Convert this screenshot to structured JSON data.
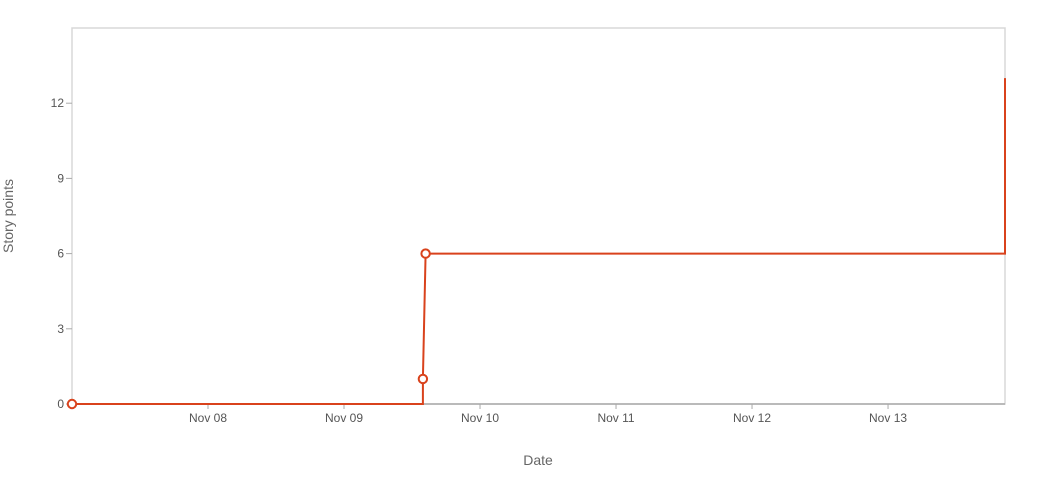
{
  "chart_data": {
    "type": "line",
    "title": "",
    "xlabel": "Date",
    "ylabel": "Story points",
    "x_tick_labels": [
      "Nov 08",
      "Nov 09",
      "Nov 10",
      "Nov 11",
      "Nov 12",
      "Nov 13"
    ],
    "y_ticks": [
      0,
      3,
      6,
      9,
      12
    ],
    "ylim": [
      0,
      15
    ],
    "xlim_days": [
      0,
      6.86
    ],
    "grid": false,
    "series": [
      {
        "name": "Story points",
        "color": "#d9421c",
        "step": true,
        "points": [
          {
            "x": 0.0,
            "y": 0,
            "marker": true
          },
          {
            "x": 2.58,
            "y": 0,
            "marker": false
          },
          {
            "x": 2.58,
            "y": 1,
            "marker": true
          },
          {
            "x": 2.6,
            "y": 6,
            "marker": true
          },
          {
            "x": 6.86,
            "y": 6,
            "marker": false
          },
          {
            "x": 6.86,
            "y": 13,
            "marker": false
          }
        ]
      }
    ]
  }
}
